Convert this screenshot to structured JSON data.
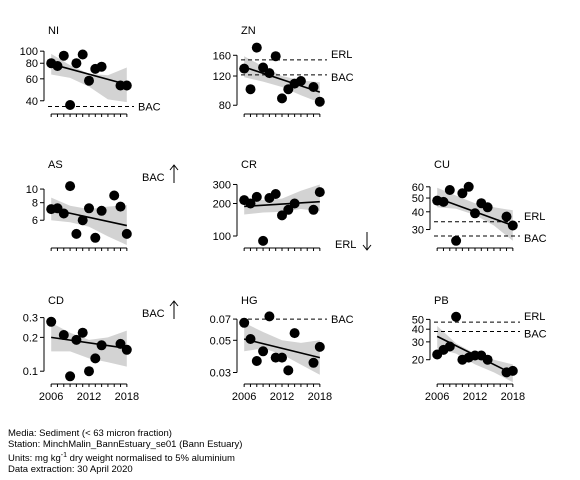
{
  "chart_data": [
    {
      "type": "scatter",
      "title": "NI",
      "scale": "log",
      "ticks": [
        "40",
        "60",
        "80",
        "100"
      ],
      "tick_values": [
        40,
        60,
        80,
        100
      ],
      "ylim": [
        35,
        110
      ],
      "points": [
        [
          2006,
          80
        ],
        [
          2007,
          76
        ],
        [
          2008,
          92
        ],
        [
          2009,
          37
        ],
        [
          2010,
          80
        ],
        [
          2011,
          94
        ],
        [
          2012,
          58
        ],
        [
          2013,
          72
        ],
        [
          2014,
          75
        ],
        [
          2017,
          53
        ],
        [
          2018,
          53
        ]
      ],
      "trend": {
        "x": [
          2006,
          2018
        ],
        "y": [
          79,
          54
        ]
      },
      "band": {
        "upper": [
          95,
          77,
          66,
          64,
          74
        ],
        "lower": [
          65,
          61,
          52,
          41,
          39
        ]
      },
      "ref_lines": [
        {
          "label": "BAC",
          "value": 36.0
        }
      ],
      "arrow": null
    },
    {
      "type": "scatter",
      "title": "ZN",
      "scale": "log",
      "ticks": [
        "80",
        "120",
        "160"
      ],
      "tick_values": [
        80,
        120,
        160
      ],
      "ylim": [
        77,
        182
      ],
      "points": [
        [
          2006,
          133
        ],
        [
          2007,
          100
        ],
        [
          2008,
          178
        ],
        [
          2009,
          135
        ],
        [
          2010,
          125
        ],
        [
          2011,
          158
        ],
        [
          2012,
          88
        ],
        [
          2013,
          100
        ],
        [
          2014,
          108
        ],
        [
          2015,
          112
        ],
        [
          2017,
          103
        ],
        [
          2018,
          84
        ]
      ],
      "trend": {
        "x": [
          2006,
          2018
        ],
        "y": [
          136,
          96
        ]
      },
      "band": {
        "upper": [
          158,
          137,
          120,
          113,
          110
        ],
        "lower": [
          118,
          111,
          103,
          92,
          83
        ]
      },
      "ref_lines": [
        {
          "label": "ERL",
          "value": 150
        },
        {
          "label": "BAC",
          "value": 122
        }
      ],
      "arrow": null
    },
    {
      "type": "scatter",
      "title": "AS",
      "scale": "log",
      "ticks": [
        "6",
        "8",
        "10"
      ],
      "tick_values": [
        6,
        8,
        10
      ],
      "ylim": [
        4.2,
        11.6
      ],
      "points": [
        [
          2006,
          7.2
        ],
        [
          2007,
          7.3
        ],
        [
          2008,
          6.7
        ],
        [
          2009,
          10.5
        ],
        [
          2010,
          4.8
        ],
        [
          2011,
          6.0
        ],
        [
          2012,
          7.3
        ],
        [
          2013,
          4.5
        ],
        [
          2014,
          7.0
        ],
        [
          2016,
          9.0
        ],
        [
          2017,
          7.5
        ],
        [
          2018,
          4.8
        ]
      ],
      "trend": {
        "x": [
          2006,
          2018
        ],
        "y": [
          7.2,
          5.5
        ]
      },
      "band": {
        "upper": [
          8.7,
          7.6,
          7.2,
          7.5,
          7.7
        ],
        "lower": [
          6.0,
          5.8,
          5.4,
          4.6,
          4.0
        ]
      },
      "ref_lines": [],
      "arrow": {
        "label": "BAC",
        "direction": "up"
      }
    },
    {
      "type": "scatter",
      "title": "CR",
      "scale": "log",
      "ticks": [
        "100",
        "200",
        "300"
      ],
      "tick_values": [
        100,
        200,
        300
      ],
      "ylim": [
        88,
        330
      ],
      "points": [
        [
          2006,
          215
        ],
        [
          2007,
          200
        ],
        [
          2008,
          230
        ],
        [
          2009,
          90
        ],
        [
          2010,
          225
        ],
        [
          2011,
          245
        ],
        [
          2012,
          155
        ],
        [
          2013,
          175
        ],
        [
          2014,
          200
        ],
        [
          2017,
          175
        ],
        [
          2018,
          255
        ]
      ],
      "trend": {
        "x": [
          2006,
          2018
        ],
        "y": [
          188,
          208
        ]
      },
      "band": {
        "upper": [
          225,
          215,
          222,
          262,
          300
        ],
        "lower": [
          158,
          165,
          167,
          178,
          170
        ]
      },
      "ref_lines": [],
      "arrow": {
        "label": "ERL",
        "direction": "down"
      }
    },
    {
      "type": "scatter",
      "title": "CU",
      "scale": "log",
      "ticks": [
        "30",
        "40",
        "50",
        "60"
      ],
      "tick_values": [
        30,
        40,
        50,
        60
      ],
      "ylim": [
        24.5,
        67
      ],
      "points": [
        [
          2006,
          48
        ],
        [
          2007,
          47
        ],
        [
          2008,
          57
        ],
        [
          2009,
          25
        ],
        [
          2010,
          54
        ],
        [
          2011,
          60
        ],
        [
          2012,
          39
        ],
        [
          2013,
          46
        ],
        [
          2014,
          43
        ],
        [
          2017,
          37
        ],
        [
          2018,
          32
        ]
      ],
      "trend": {
        "x": [
          2006,
          2018
        ],
        "y": [
          50,
          32
        ]
      },
      "band": {
        "upper": [
          59,
          52,
          46,
          43,
          41
        ],
        "lower": [
          43,
          42,
          38,
          32,
          25
        ]
      },
      "ref_lines": [
        {
          "label": "ERL",
          "value": 34
        },
        {
          "label": "BAC",
          "value": 27
        }
      ],
      "arrow": null
    },
    {
      "type": "scatter",
      "title": "CD",
      "scale": "log",
      "ticks": [
        "0.1",
        "0.2",
        "0.3"
      ],
      "tick_values": [
        0.1,
        0.2,
        0.3
      ],
      "ylim": [
        0.087,
        0.31
      ],
      "points": [
        [
          2006,
          0.275
        ],
        [
          2008,
          0.21
        ],
        [
          2009,
          0.09
        ],
        [
          2010,
          0.19
        ],
        [
          2011,
          0.22
        ],
        [
          2012,
          0.1
        ],
        [
          2013,
          0.13
        ],
        [
          2014,
          0.17
        ],
        [
          2017,
          0.175
        ],
        [
          2018,
          0.155
        ]
      ],
      "trend": {
        "x": [
          2006,
          2018
        ],
        "y": [
          0.2,
          0.16
        ]
      },
      "band": {
        "upper": [
          0.27,
          0.22,
          0.19,
          0.2,
          0.23
        ],
        "lower": [
          0.15,
          0.15,
          0.13,
          0.12,
          0.11
        ]
      },
      "ref_lines": [],
      "arrow": {
        "label": "BAC",
        "direction": "up"
      }
    },
    {
      "type": "scatter",
      "title": "HG",
      "scale": "log",
      "ticks": [
        "0.03",
        "0.05",
        "0.07"
      ],
      "tick_values": [
        0.03,
        0.05,
        0.07
      ],
      "ylim": [
        0.0275,
        0.0735
      ],
      "points": [
        [
          2006,
          0.066
        ],
        [
          2007,
          0.051
        ],
        [
          2008,
          0.036
        ],
        [
          2009,
          0.042
        ],
        [
          2010,
          0.073
        ],
        [
          2011,
          0.038
        ],
        [
          2012,
          0.038
        ],
        [
          2013,
          0.031
        ],
        [
          2014,
          0.056
        ],
        [
          2017,
          0.035
        ],
        [
          2018,
          0.045
        ]
      ],
      "trend": {
        "x": [
          2006,
          2018
        ],
        "y": [
          0.051,
          0.038
        ]
      },
      "band": {
        "upper": [
          0.066,
          0.057,
          0.05,
          0.048,
          0.05
        ],
        "lower": [
          0.042,
          0.044,
          0.04,
          0.034,
          0.029
        ]
      },
      "ref_lines": [
        {
          "label": "BAC",
          "value": 0.07
        }
      ],
      "arrow": null
    },
    {
      "type": "scatter",
      "title": "PB",
      "scale": "log",
      "ticks": [
        "20",
        "30",
        "40",
        "50"
      ],
      "tick_values": [
        20,
        30,
        40,
        50
      ],
      "ylim": [
        13.2,
        54
      ],
      "points": [
        [
          2006,
          22.5
        ],
        [
          2007,
          25
        ],
        [
          2008,
          27
        ],
        [
          2009,
          53
        ],
        [
          2010,
          20
        ],
        [
          2011,
          21
        ],
        [
          2012,
          22
        ],
        [
          2013,
          22
        ],
        [
          2014,
          20
        ],
        [
          2017,
          15
        ],
        [
          2018,
          15.5
        ]
      ],
      "trend": {
        "x": [
          2006,
          2018
        ],
        "y": [
          34,
          14.5
        ]
      },
      "band": {
        "upper": [
          43,
          29,
          23,
          20,
          18
        ],
        "lower": [
          26,
          23,
          18,
          15,
          12
        ]
      },
      "ref_lines": [
        {
          "label": "ERL",
          "value": 47
        },
        {
          "label": "BAC",
          "value": 38
        }
      ],
      "arrow": null
    }
  ],
  "x_axis": {
    "range": [
      2005.5,
      2018.5
    ],
    "ticks": [
      "2006",
      "2012",
      "2018"
    ],
    "tick_values": [
      2006,
      2012,
      2018
    ]
  },
  "footer": {
    "media": "Media: Sediment (< 63 micron fraction)",
    "station": "Station: MinchMalin_BannEstuary_se01 (Bann Estuary)",
    "units_prefix": "Units:  mg kg",
    "units_sup": "-1",
    "units_suffix": " dry weight normalised to 5% aluminium",
    "extraction": "Data extraction: 30 April 2020"
  },
  "colors": {
    "band": "#d3d3d3",
    "marker": "#000000",
    "line": "#000000"
  }
}
